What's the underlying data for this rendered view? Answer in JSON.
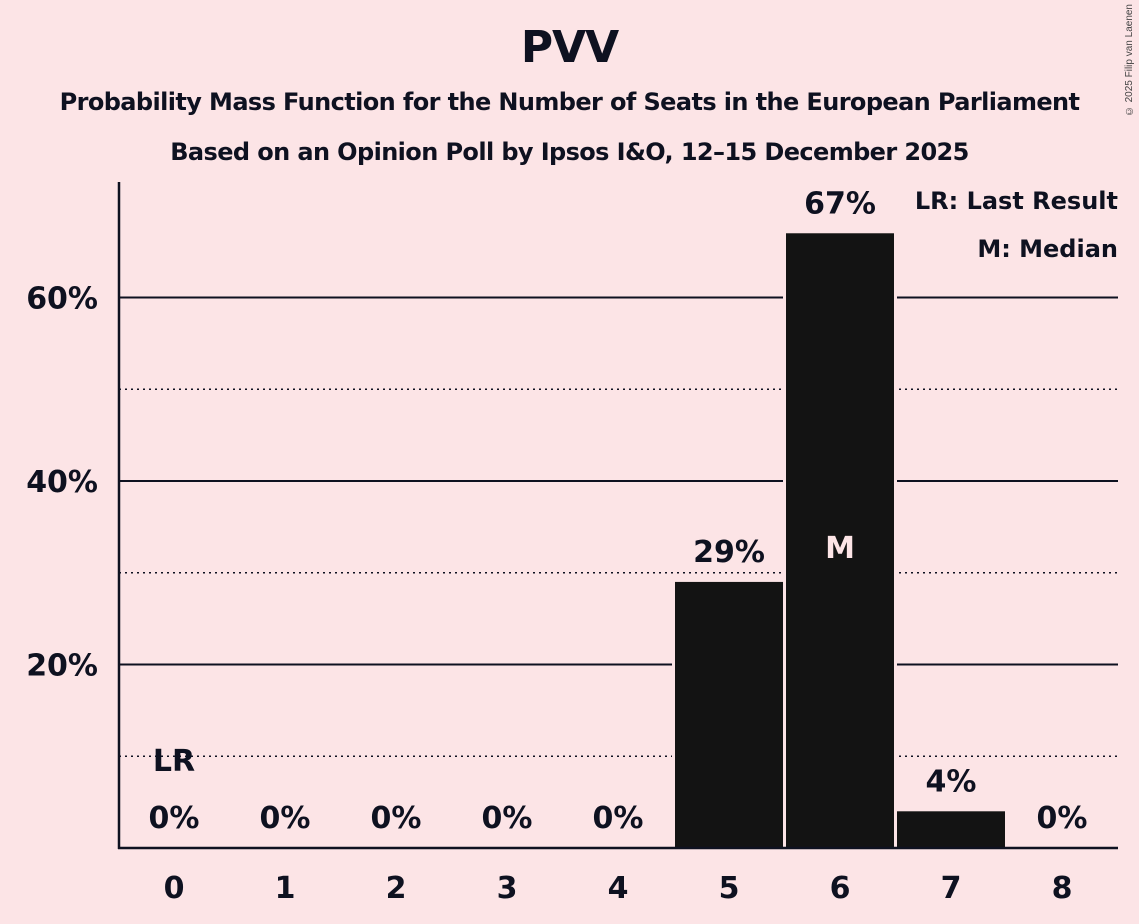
{
  "header": {
    "title": "PVV",
    "subtitle1": "Probability Mass Function for the Number of Seats in the European Parliament",
    "subtitle2": "Based on an Opinion Poll by Ipsos I&O, 12–15 December 2025",
    "copyright": "© 2025 Filip van Laenen"
  },
  "legend": {
    "lr": "LR: Last Result",
    "m": "M: Median"
  },
  "colors": {
    "background": "#fce4e6",
    "bar": "#131313",
    "text": "#0e1120"
  },
  "chart_data": {
    "type": "bar",
    "title": "PVV",
    "subtitle": "Probability Mass Function for the Number of Seats in the European Parliament — Based on an Opinion Poll by Ipsos I&O, 12–15 December 2025",
    "xlabel": "",
    "ylabel": "",
    "categories": [
      "0",
      "1",
      "2",
      "3",
      "4",
      "5",
      "6",
      "7",
      "8"
    ],
    "values": [
      0,
      0,
      0,
      0,
      0,
      29,
      67,
      4,
      0
    ],
    "value_labels": [
      "0%",
      "0%",
      "0%",
      "0%",
      "0%",
      "29%",
      "67%",
      "4%",
      "0%"
    ],
    "ylim": [
      0,
      72
    ],
    "yticks": [
      20,
      40,
      60
    ],
    "ytick_labels": [
      "20%",
      "40%",
      "60%"
    ],
    "minor_gridlines": [
      10,
      30,
      50
    ],
    "grid": true,
    "annotations": [
      {
        "category": "0",
        "text": "LR",
        "meaning": "Last Result"
      },
      {
        "category": "6",
        "text": "M",
        "meaning": "Median"
      }
    ],
    "legend_position": "top-right"
  }
}
